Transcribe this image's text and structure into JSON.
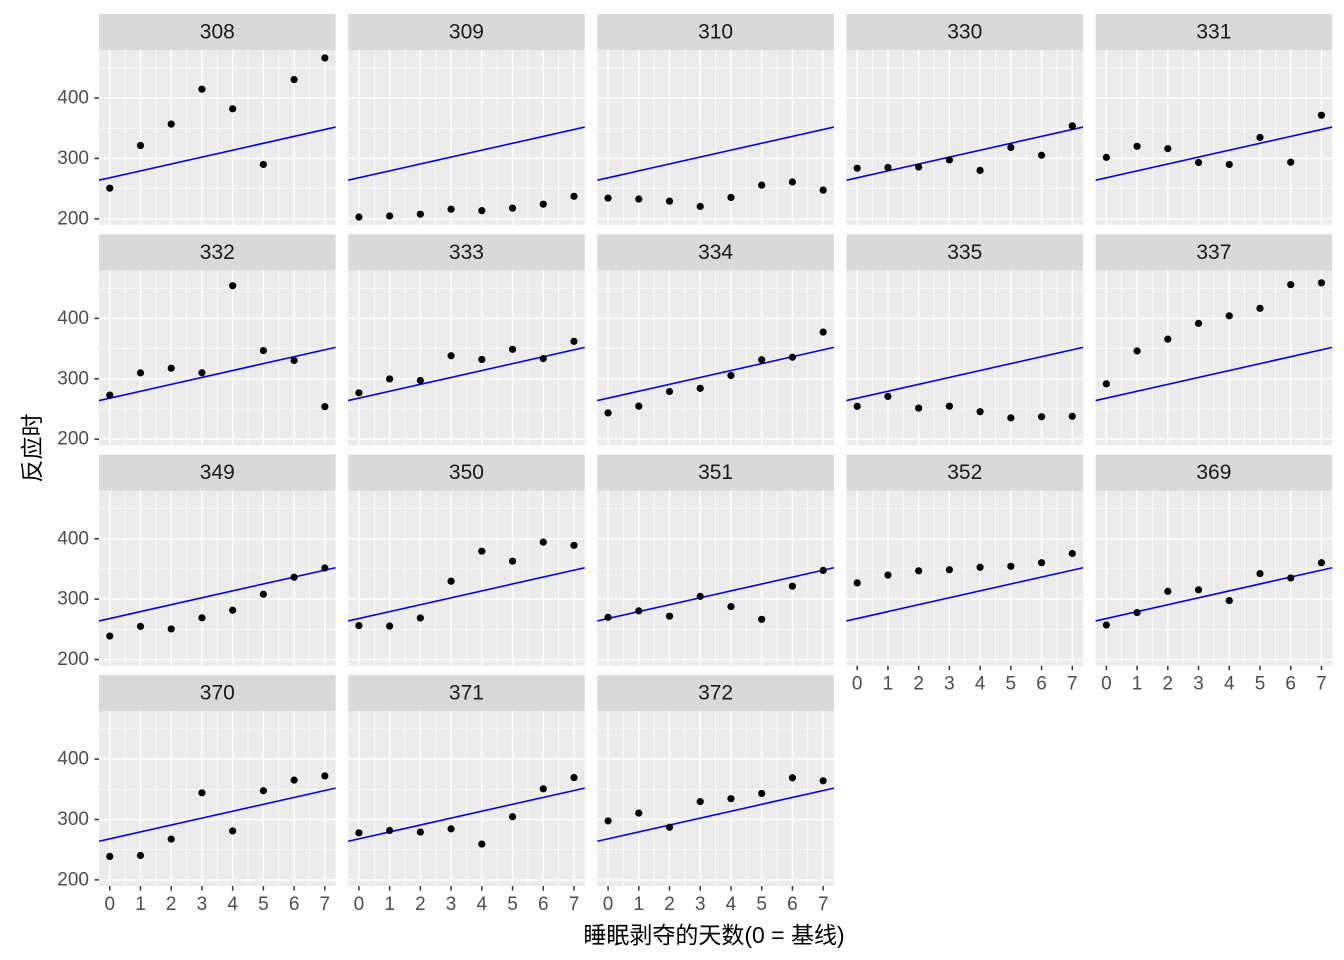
{
  "figure": {
    "x_label": "睡眠剥夺的天数(0 = 基线)",
    "y_label": "反应时"
  },
  "chart_data": {
    "type": "scatter",
    "title": "",
    "xlabel": "睡眠剥夺的天数(0 = 基线)",
    "ylabel": "反应时",
    "facet_by": "subject",
    "facet_columns": 5,
    "x": [
      0,
      1,
      2,
      3,
      4,
      5,
      6,
      7
    ],
    "x_ticks": [
      "0",
      "1",
      "2",
      "3",
      "4",
      "5",
      "6",
      "7"
    ],
    "y_ticks": [
      "200",
      "300",
      "400"
    ],
    "y_tick_values": [
      200,
      300,
      400
    ],
    "x_minor_gridlines": [
      0.5,
      1.5,
      2.5,
      3.5,
      4.5,
      5.5,
      6.5
    ],
    "y_minor_gridlines": [
      250,
      350,
      450
    ],
    "x_domain": [
      -0.35,
      7.35
    ],
    "y_domain": [
      189.8,
      479.6
    ],
    "grid": true,
    "legend": "none",
    "fit_line": {
      "type": "linear",
      "intercept": 267.967,
      "slope": 11.435
    },
    "facets": [
      {
        "subject": "308",
        "y": [
          250.8,
          321.4,
          356.9,
          414.7,
          382.2,
          290.1,
          430.6,
          466.4
        ]
      },
      {
        "subject": "309",
        "y": [
          203.0,
          204.7,
          207.7,
          216.0,
          213.6,
          217.7,
          224.3,
          237.3
        ]
      },
      {
        "subject": "310",
        "y": [
          234.3,
          232.8,
          229.3,
          220.5,
          235.4,
          255.8,
          261.0,
          247.5
        ]
      },
      {
        "subject": "330",
        "y": [
          283.9,
          285.1,
          285.8,
          297.6,
          280.2,
          318.3,
          305.3,
          354.0
        ]
      },
      {
        "subject": "331",
        "y": [
          301.8,
          320.1,
          316.3,
          293.3,
          290.1,
          334.8,
          293.7,
          371.6
        ]
      },
      {
        "subject": "332",
        "y": [
          273.0,
          309.8,
          317.5,
          310.0,
          454.2,
          346.8,
          330.3,
          253.9
        ]
      },
      {
        "subject": "333",
        "y": [
          276.8,
          299.8,
          297.2,
          338.2,
          332.0,
          348.8,
          333.4,
          362.0
        ]
      },
      {
        "subject": "334",
        "y": [
          243.4,
          254.7,
          279.0,
          284.2,
          305.5,
          331.5,
          335.7,
          377.3
        ]
      },
      {
        "subject": "335",
        "y": [
          254.5,
          270.8,
          251.5,
          254.6,
          245.5,
          235.3,
          237.2,
          237.9
        ]
      },
      {
        "subject": "337",
        "y": [
          291.6,
          346.1,
          365.7,
          391.8,
          404.3,
          416.7,
          455.9,
          458.9
        ]
      },
      {
        "subject": "349",
        "y": [
          238.9,
          254.9,
          250.7,
          269.1,
          281.6,
          308.1,
          336.3,
          351.6
        ]
      },
      {
        "subject": "350",
        "y": [
          256.2,
          255.5,
          268.9,
          329.7,
          379.4,
          362.9,
          394.5,
          389.1
        ]
      },
      {
        "subject": "351",
        "y": [
          269.9,
          280.6,
          271.8,
          304.6,
          287.7,
          266.6,
          321.5,
          347.6
        ]
      },
      {
        "subject": "352",
        "y": [
          326.9,
          339.9,
          346.9,
          348.7,
          352.8,
          354.4,
          360.4,
          375.6
        ]
      },
      {
        "subject": "369",
        "y": [
          257.2,
          277.7,
          312.9,
          315.5,
          297.6,
          342.4,
          335.1,
          360.3
        ]
      },
      {
        "subject": "370",
        "y": [
          238.9,
          240.5,
          267.5,
          344.2,
          281.1,
          347.6,
          365.2,
          372.2
        ]
      },
      {
        "subject": "371",
        "y": [
          277.9,
          281.8,
          279.2,
          284.5,
          259.3,
          304.6,
          350.8,
          369.5
        ]
      },
      {
        "subject": "372",
        "y": [
          297.6,
          310.6,
          287.2,
          329.6,
          334.5,
          343.2,
          369.1,
          364.1
        ]
      }
    ],
    "colors": {
      "point": "#000000",
      "fit_line": "#0000FF",
      "panel_background": "#EBEBEB",
      "gridline_major": "#FFFFFF",
      "gridline_minor": "#FFFFFF",
      "strip_background": "#D9D9D9",
      "strip_text": "#1A1A1A",
      "tick_text": "#4D4D4D",
      "tick_mark": "#333333",
      "axis_title": "#000000",
      "page_background": "#FFFFFF"
    }
  }
}
